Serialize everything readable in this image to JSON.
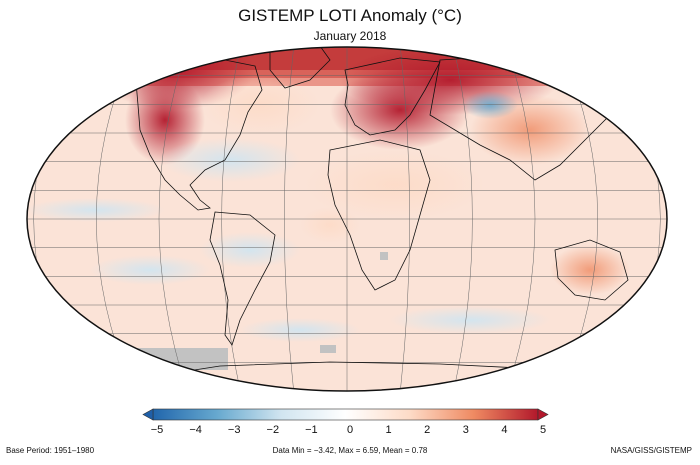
{
  "title": "GISTEMP LOTI Anomaly (°C)",
  "subtitle": "January 2018",
  "colorbar": {
    "ticks": [
      "−5",
      "−4",
      "−3",
      "−2",
      "−1",
      "0",
      "1",
      "2",
      "3",
      "4",
      "5"
    ],
    "min": -5,
    "max": 5,
    "colors": [
      "#2166ac",
      "#67a9cf",
      "#d1e5f0",
      "#ffffff",
      "#fddbc7",
      "#ef8a62",
      "#b2182b"
    ]
  },
  "footer": {
    "base_period": "Base Period: 1951–1980",
    "stats": "Data Min = −3.42, Max = 6.59, Mean = 0.78",
    "credit": "NASA/GISS/GISTEMP"
  }
}
